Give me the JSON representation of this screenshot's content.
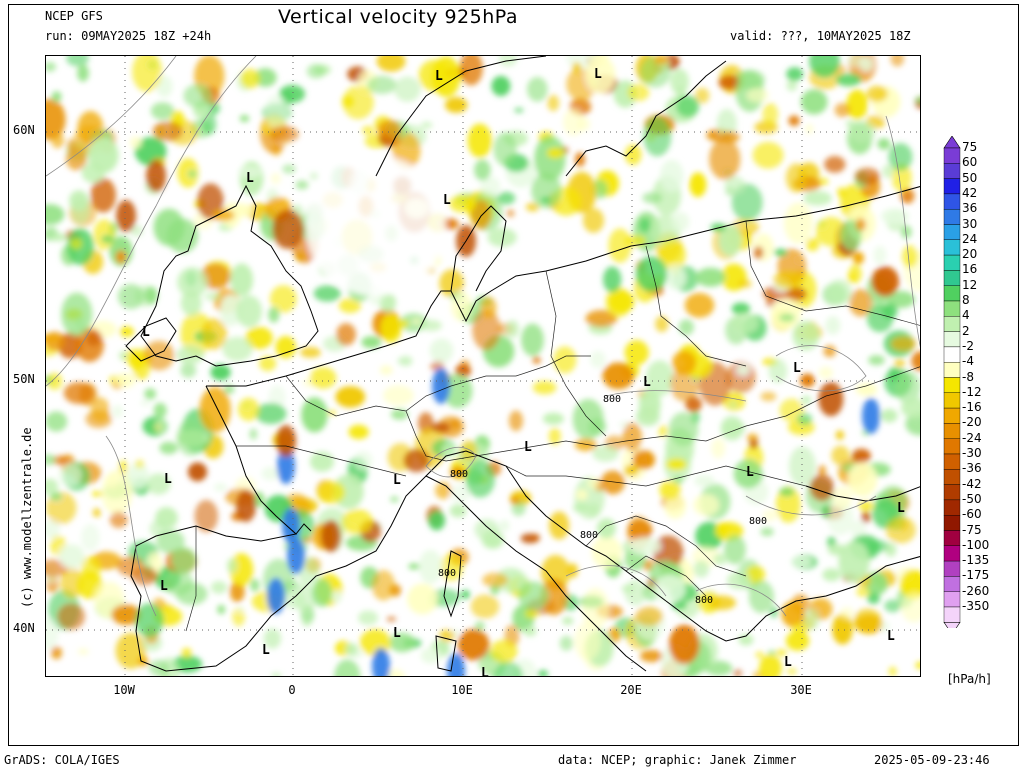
{
  "header": {
    "model": "NCEP GFS",
    "run": "run: 09MAY2025 18Z +24h",
    "title": "Vertical velocity 925hPa",
    "valid": "valid: ???, 10MAY2025 18Z"
  },
  "axes": {
    "lat_labels": [
      "60N",
      "50N",
      "40N"
    ],
    "lon_labels": [
      "10W",
      "0",
      "10E",
      "20E",
      "30E"
    ]
  },
  "legend": {
    "unit": "[hPa/h]",
    "levels": [
      "75",
      "60",
      "50",
      "42",
      "36",
      "30",
      "24",
      "20",
      "16",
      "12",
      "8",
      "4",
      "2",
      "-2",
      "-4",
      "-8",
      "-12",
      "-16",
      "-20",
      "-24",
      "-30",
      "-36",
      "-42",
      "-50",
      "-60",
      "-75",
      "-100",
      "-135",
      "-175",
      "-260",
      "-350"
    ],
    "colors": [
      "#7a3cd6",
      "#5a3cd6",
      "#2020e6",
      "#2f55e6",
      "#2f7ae6",
      "#2aa0e6",
      "#2ac0d8",
      "#2ad0b0",
      "#30c890",
      "#50d060",
      "#8ee07e",
      "#c0f0b0",
      "#e6fae0",
      "#ffffff",
      "#ffffc0",
      "#f5e600",
      "#f0c800",
      "#f0a800",
      "#e89000",
      "#e07800",
      "#d06000",
      "#c05000",
      "#b03c00",
      "#a02800",
      "#901800",
      "#a00040",
      "#b00080",
      "#b040c0",
      "#c070e0",
      "#e0a0f0",
      "#f4d4fa"
    ]
  },
  "map_labels": {
    "low_symbol": "L",
    "contour_value": "800"
  },
  "footer": {
    "software": "GrADS: COLA/IGES",
    "credits": "data: NCEP; graphic: Janek Zimmer",
    "timestamp": "2025-05-09-23:46",
    "vertical_credit": "(c) www.modellzentrale.de"
  }
}
